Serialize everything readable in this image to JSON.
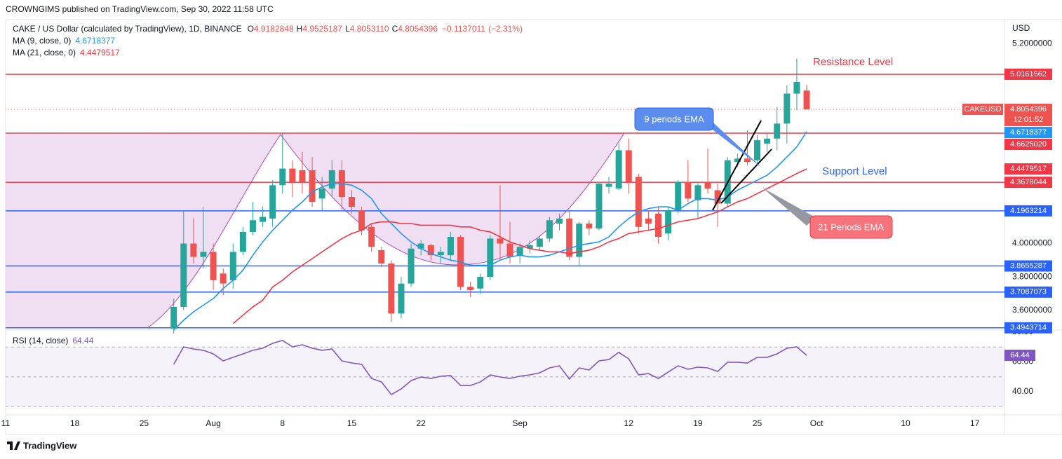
{
  "header": {
    "published": "CROWNGIMS published on TradingView.com, Sep 30, 2022 11:58 UTC",
    "symbol": "CAKE / US Dollar (calculated by TradingView), 1D, BINANCE",
    "ohlc": [
      {
        "key": "O",
        "value": "4.9182848"
      },
      {
        "key": "H",
        "value": "4.9525187"
      },
      {
        "key": "L",
        "value": "4.8053110"
      },
      {
        "key": "C",
        "value": "4.8054396"
      }
    ],
    "change": "−0.1137011",
    "change_percent": "(−2.31%)"
  },
  "chart_data": {
    "type": "candlestick",
    "x": [
      "2022-07-28",
      "2022-07-29",
      "2022-07-30",
      "2022-07-31",
      "2022-08-01",
      "2022-08-02",
      "2022-08-03",
      "2022-08-04",
      "2022-08-05",
      "2022-08-06",
      "2022-08-07",
      "2022-08-08",
      "2022-08-09",
      "2022-08-10",
      "2022-08-11",
      "2022-08-12",
      "2022-08-13",
      "2022-08-14",
      "2022-08-15",
      "2022-08-16",
      "2022-08-17",
      "2022-08-18",
      "2022-08-19",
      "2022-08-20",
      "2022-08-21",
      "2022-08-22",
      "2022-08-23",
      "2022-08-24",
      "2022-08-25",
      "2022-08-26",
      "2022-08-27",
      "2022-08-28",
      "2022-08-29",
      "2022-08-30",
      "2022-08-31",
      "2022-09-01",
      "2022-09-02",
      "2022-09-03",
      "2022-09-04",
      "2022-09-05",
      "2022-09-06",
      "2022-09-07",
      "2022-09-08",
      "2022-09-09",
      "2022-09-10",
      "2022-09-11",
      "2022-09-12",
      "2022-09-13",
      "2022-09-14",
      "2022-09-15",
      "2022-09-16",
      "2022-09-17",
      "2022-09-18",
      "2022-09-19",
      "2022-09-20",
      "2022-09-21",
      "2022-09-22",
      "2022-09-23",
      "2022-09-24",
      "2022-09-25",
      "2022-09-26",
      "2022-09-27",
      "2022-09-28",
      "2022-09-29",
      "2022-09-30"
    ],
    "open": [
      3.49,
      3.62,
      4.0,
      3.92,
      3.95,
      3.82,
      3.78,
      3.95,
      4.07,
      4.13,
      4.15,
      4.35,
      4.45,
      4.44,
      4.44,
      4.27,
      4.33,
      4.44,
      4.28,
      4.2,
      4.1,
      3.96,
      3.88,
      3.58,
      3.76,
      3.97,
      3.99,
      3.93,
      3.93,
      4.04,
      3.74,
      3.73,
      3.8,
      4.03,
      4.0,
      3.93,
      3.97,
      3.98,
      4.03,
      4.12,
      4.15,
      3.92,
      4.12,
      4.09,
      4.34,
      4.33,
      4.56,
      4.4,
      4.15,
      4.18,
      4.06,
      4.2,
      4.37,
      4.26,
      4.37,
      4.32,
      4.24,
      4.49,
      4.51,
      4.5,
      4.6,
      4.63,
      4.72,
      4.9,
      4.9182848
    ],
    "high": [
      3.67,
      4.2,
      4.15,
      4.22,
      4.0,
      3.85,
      4.0,
      4.1,
      4.25,
      4.22,
      4.38,
      4.66,
      4.5,
      4.55,
      4.52,
      4.4,
      4.5,
      4.5,
      4.32,
      4.22,
      4.12,
      3.98,
      3.9,
      3.8,
      4.0,
      4.02,
      4.0,
      3.98,
      4.07,
      4.05,
      3.77,
      3.82,
      4.05,
      4.35,
      4.13,
      4.0,
      4.02,
      4.05,
      4.16,
      4.18,
      4.2,
      4.13,
      4.14,
      4.37,
      4.4,
      4.6,
      4.63,
      4.42,
      4.2,
      4.22,
      4.22,
      4.38,
      4.5,
      4.37,
      4.57,
      4.36,
      4.52,
      4.54,
      4.68,
      4.65,
      4.66,
      4.82,
      4.95,
      5.11,
      4.9525187
    ],
    "low": [
      3.46,
      3.6,
      3.88,
      3.85,
      3.72,
      3.69,
      3.73,
      3.93,
      4.05,
      4.1,
      4.1,
      4.3,
      4.28,
      4.3,
      4.22,
      4.2,
      4.28,
      4.2,
      4.18,
      4.05,
      3.95,
      3.86,
      3.53,
      3.55,
      3.74,
      3.93,
      3.9,
      3.88,
      3.9,
      3.72,
      3.68,
      3.7,
      3.78,
      3.9,
      3.88,
      3.88,
      3.94,
      3.96,
      4.01,
      4.08,
      3.9,
      3.87,
      4.05,
      4.08,
      4.3,
      4.32,
      4.3,
      4.06,
      4.08,
      4.0,
      4.02,
      4.18,
      4.25,
      4.15,
      4.3,
      4.1,
      4.22,
      4.46,
      4.47,
      4.48,
      4.55,
      4.56,
      4.6,
      4.8,
      4.805311
    ],
    "close": [
      3.62,
      4.0,
      3.92,
      3.95,
      3.78,
      3.76,
      3.95,
      4.07,
      4.14,
      4.16,
      4.35,
      4.45,
      4.37,
      4.37,
      4.25,
      4.33,
      4.44,
      4.28,
      4.22,
      4.08,
      3.98,
      3.88,
      3.58,
      3.76,
      3.97,
      4.0,
      3.93,
      3.95,
      4.04,
      3.74,
      3.72,
      3.8,
      4.03,
      4.0,
      3.92,
      3.98,
      3.99,
      4.03,
      4.14,
      4.15,
      3.92,
      4.12,
      4.09,
      4.36,
      4.36,
      4.56,
      4.37,
      4.1,
      4.12,
      4.04,
      4.2,
      4.37,
      4.27,
      4.35,
      4.33,
      4.24,
      4.5,
      4.51,
      4.49,
      4.62,
      4.63,
      4.72,
      4.9,
      4.97,
      4.8054396
    ],
    "up_color": "#26a69a",
    "down_color": "#ef5350",
    "xlim": [
      "2022-07-11",
      "2022-10-20"
    ],
    "xticks": [
      {
        "value": "2022-07-11",
        "label": "11"
      },
      {
        "value": "2022-07-18",
        "label": "18"
      },
      {
        "value": "2022-07-25",
        "label": "25"
      },
      {
        "value": "2022-08-01",
        "label": "Aug"
      },
      {
        "value": "2022-08-08",
        "label": "8"
      },
      {
        "value": "2022-08-15",
        "label": "15"
      },
      {
        "value": "2022-08-22",
        "label": "22"
      },
      {
        "value": "2022-09-01",
        "label": "Sep"
      },
      {
        "value": "2022-09-12",
        "label": "12"
      },
      {
        "value": "2022-09-19",
        "label": "19"
      },
      {
        "value": "2022-09-25",
        "label": "25"
      },
      {
        "value": "2022-10-01",
        "label": "Oct"
      },
      {
        "value": "2022-10-10",
        "label": "10"
      },
      {
        "value": "2022-10-17",
        "label": "17"
      }
    ],
    "ylim": [
      3.485,
      5.344
    ],
    "yticks": [
      {
        "value": 5.2,
        "label": "5.2000000"
      },
      {
        "value": 4,
        "label": "4.0000000"
      },
      {
        "value": 3.8,
        "label": "3.8000000"
      },
      {
        "value": 3.6,
        "label": "3.6000000"
      }
    ],
    "currency": "USD",
    "ticker": "CAKEUSD",
    "countdown": "12:01:52",
    "series": [
      {
        "name": "MA (9, close, 0)",
        "color": "#2196f3",
        "values": [
          3.48,
          3.54,
          3.59,
          3.63,
          3.67,
          3.73,
          3.78,
          3.84,
          3.93,
          4.01,
          4.08,
          4.14,
          4.2,
          4.25,
          4.31,
          4.34,
          4.36,
          4.36,
          4.35,
          4.32,
          4.27,
          4.18,
          4.12,
          4.06,
          4.01,
          3.97,
          3.94,
          3.92,
          3.9,
          3.89,
          3.87,
          3.87,
          3.87,
          3.9,
          3.92,
          3.93,
          3.92,
          3.92,
          3.93,
          3.95,
          3.97,
          3.99,
          4.0,
          4.01,
          4.04,
          4.1,
          4.15,
          4.19,
          4.21,
          4.22,
          4.22,
          4.2,
          4.24,
          4.27,
          4.27,
          4.26,
          4.28,
          4.32,
          4.35,
          4.38,
          4.41,
          4.46,
          4.52,
          4.58,
          4.6718377
        ]
      },
      {
        "name": "MA (21, close, 0)",
        "color": "#f23645",
        "values": [
          null,
          null,
          null,
          null,
          null,
          null,
          3.52,
          3.57,
          3.62,
          3.66,
          3.74,
          3.78,
          3.83,
          3.87,
          3.91,
          3.95,
          3.99,
          4.03,
          4.06,
          4.08,
          4.12,
          4.13,
          4.13,
          4.12,
          4.12,
          4.11,
          4.11,
          4.11,
          4.11,
          4.1,
          4.1,
          4.08,
          4.07,
          4.04,
          4.01,
          3.99,
          3.97,
          3.96,
          3.95,
          3.95,
          3.94,
          3.95,
          3.96,
          3.98,
          4.01,
          4.03,
          4.06,
          4.07,
          4.08,
          4.09,
          4.11,
          4.13,
          4.14,
          4.15,
          4.17,
          4.19,
          4.22,
          4.25,
          4.27,
          4.3,
          4.33,
          4.36,
          4.39,
          4.42,
          4.4479517
        ]
      }
    ],
    "levels": [
      {
        "value": 5.0161562,
        "color": "#f23645"
      },
      {
        "value": 4.662502,
        "label": "4.6625020",
        "color": "#f23645"
      },
      {
        "value": 4.3678044,
        "color": "#f23645"
      },
      {
        "value": 4.1963214,
        "color": "#2962ff"
      },
      {
        "value": 3.8655287,
        "color": "#2962ff"
      },
      {
        "value": 3.7087073,
        "color": "#2962ff"
      },
      {
        "value": 3.4943714,
        "color": "#2962ff"
      }
    ],
    "rsi": {
      "name": "RSI (14, close)",
      "color": "#7e57c2",
      "values": [
        58.4,
        70.1,
        68.7,
        67.8,
        65.4,
        60.7,
        63.1,
        65.4,
        67.8,
        69.2,
        72.5,
        74.4,
        70.1,
        71.5,
        69.2,
        67.8,
        68.7,
        60.7,
        59.3,
        58.4,
        48.9,
        46.6,
        38.1,
        41.9,
        47.5,
        49.9,
        48.9,
        50.4,
        50.8,
        44.2,
        44.2,
        46.6,
        51.3,
        49.9,
        48.9,
        50.4,
        51.3,
        52.7,
        56.0,
        57.4,
        48.5,
        56.0,
        54.6,
        60.7,
        61.6,
        66.4,
        62.1,
        51.3,
        52.2,
        48.9,
        53.2,
        57.4,
        55.1,
        56.5,
        56.0,
        53.6,
        59.8,
        59.8,
        59.3,
        63.1,
        63.1,
        65.4,
        69.2,
        70.1,
        64.44
      ],
      "ylim": [
        24.5,
        80.9
      ],
      "yticks": [
        {
          "value": 80,
          "label": "80.00"
        },
        {
          "value": 60,
          "label": "60.00"
        },
        {
          "value": 40,
          "label": "40.00"
        }
      ],
      "levels": [
        70,
        50,
        30
      ]
    },
    "annotations": {
      "resistance": "Resistance Level",
      "support": "Support Level",
      "ema9": "9 periods EMA",
      "ema21": "21 Periods EMA"
    }
  },
  "footer": {
    "brand": "TradingView"
  }
}
